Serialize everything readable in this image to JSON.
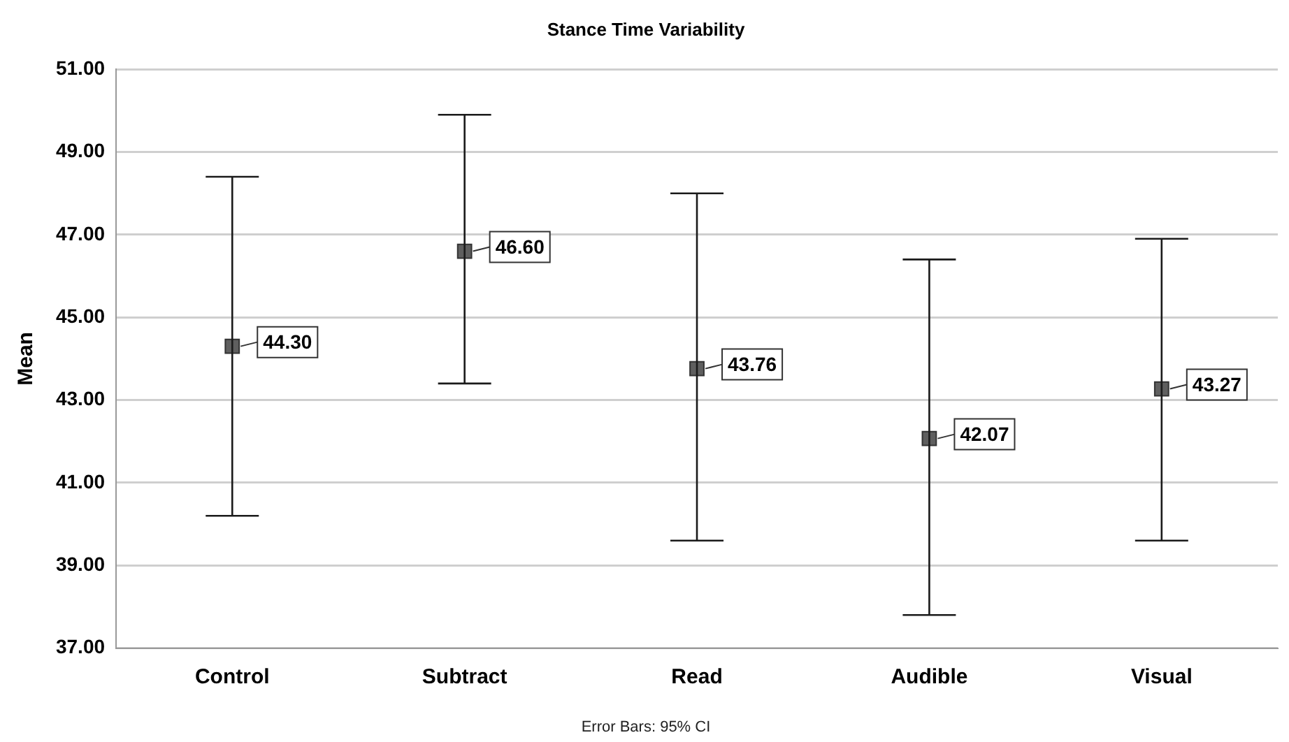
{
  "chart_data": {
    "type": "scatter",
    "title": "Stance Time Variability",
    "ylabel": "Mean",
    "categories": [
      "Control",
      "Subtract",
      "Read",
      "Audible",
      "Visual"
    ],
    "values": [
      44.3,
      46.6,
      43.76,
      42.07,
      43.27
    ],
    "value_labels": [
      "44.30",
      "46.60",
      "43.76",
      "42.07",
      "43.27"
    ],
    "errors": [
      [
        40.2,
        48.4
      ],
      [
        43.4,
        49.9
      ],
      [
        39.6,
        48.0
      ],
      [
        37.8,
        46.4
      ],
      [
        39.6,
        46.9
      ]
    ],
    "color": "#5f5f5f",
    "marker": "square",
    "ylim": [
      37,
      51
    ],
    "yticks": [
      {
        "value": 37,
        "label": "37.00"
      },
      {
        "value": 39,
        "label": "39.00"
      },
      {
        "value": 41,
        "label": "41.00"
      },
      {
        "value": 43,
        "label": "43.00"
      },
      {
        "value": 45,
        "label": "45.00"
      },
      {
        "value": 47,
        "label": "47.00"
      },
      {
        "value": 49,
        "label": "49.00"
      },
      {
        "value": 51,
        "label": "51.00"
      }
    ],
    "grid": "y",
    "legend": false,
    "annotations": [
      "Error Bars: 95% CI"
    ]
  }
}
